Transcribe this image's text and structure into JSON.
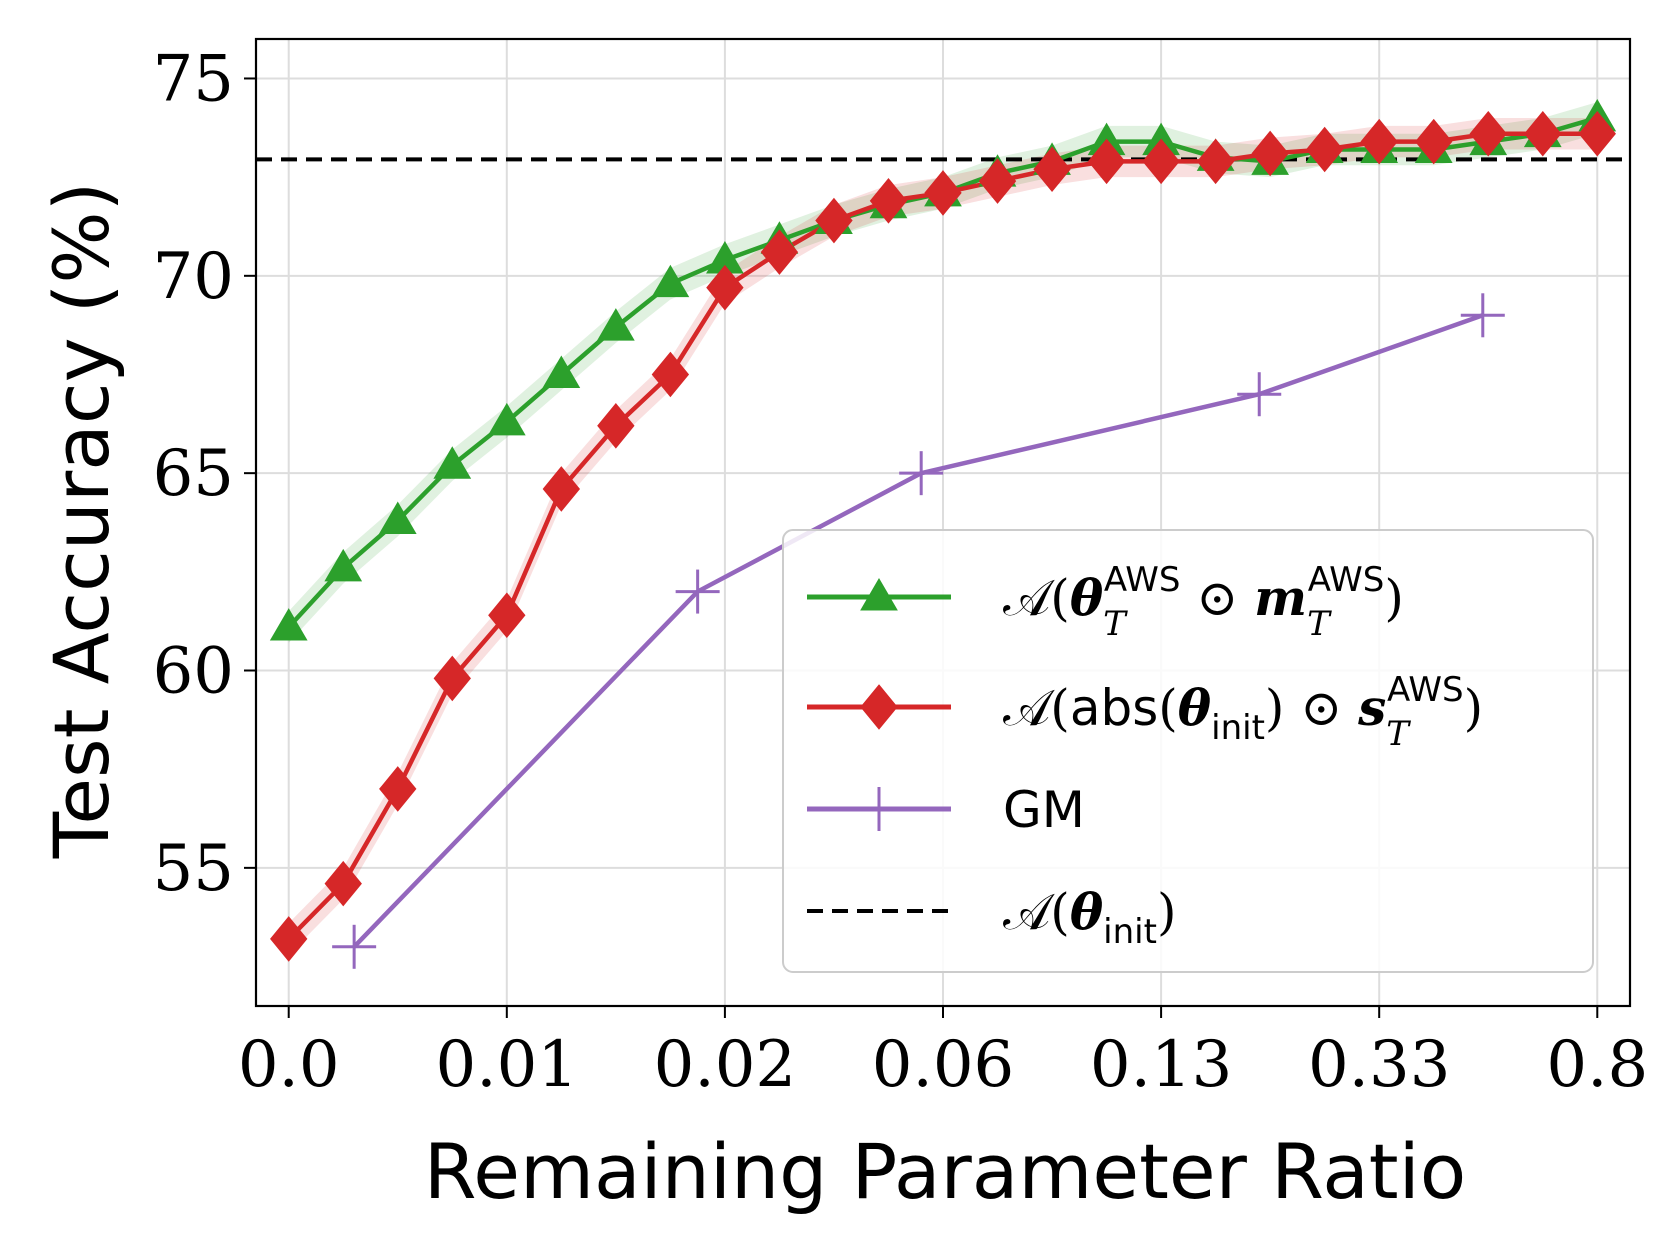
{
  "chart_data": {
    "type": "line",
    "title": "",
    "xlabel": "Remaining Parameter Ratio",
    "ylabel": "Test Accuracy (%)",
    "x_tick_labels": [
      "0.0",
      "0.01",
      "0.02",
      "0.06",
      "0.13",
      "0.33",
      "0.8"
    ],
    "y_ticks": [
      55,
      60,
      65,
      70,
      75
    ],
    "ylim": [
      51.5,
      76
    ],
    "x_index_range": [
      -0.3,
      12.3
    ],
    "grid": true,
    "legend_position": "lower-right",
    "series": [
      {
        "name": "A(θ_T^AWS ⊙ m_T^AWS)",
        "legend": {
          "prefix": "𝒜(",
          "sym1": "θ",
          "sub1": "T",
          "sup1": "AWS",
          "op": " ⊙ ",
          "sym2": "m",
          "sub2": "T",
          "sup2": "AWS",
          "suffix": ")"
        },
        "color": "#2ca02c",
        "marker": "triangle",
        "x": [
          0,
          0.5,
          1,
          1.5,
          2,
          2.5,
          3,
          3.5,
          4,
          4.5,
          5,
          5.5,
          6,
          6.5,
          7,
          7.5,
          8,
          8.5,
          9,
          9.5,
          10,
          10.5,
          11,
          11.5,
          12
        ],
        "values": [
          61.1,
          62.6,
          63.8,
          65.2,
          66.3,
          67.5,
          68.7,
          69.8,
          70.4,
          70.9,
          71.4,
          71.8,
          72.1,
          72.6,
          72.9,
          73.4,
          73.4,
          73.0,
          72.9,
          73.2,
          73.2,
          73.2,
          73.4,
          73.6,
          74.0
        ],
        "band": 0.4
      },
      {
        "name": "A(abs(θ_init) ⊙ s_T^AWS)",
        "legend": {
          "prefix": "𝒜(",
          "func": "abs",
          "open": "(",
          "sym1": "θ",
          "sub1": "init",
          "close": ")",
          "op": " ⊙ ",
          "sym2": "s",
          "sub2": "T",
          "sup2": "AWS",
          "suffix": ")"
        },
        "color": "#d62728",
        "marker": "diamond",
        "x": [
          0,
          0.5,
          1,
          1.5,
          2,
          2.5,
          3,
          3.5,
          4,
          4.5,
          5,
          5.5,
          6,
          6.5,
          7,
          7.5,
          8,
          8.5,
          9,
          9.5,
          10,
          10.5,
          11,
          11.5,
          12
        ],
        "values": [
          53.2,
          54.6,
          57.0,
          59.8,
          61.4,
          64.6,
          66.2,
          67.5,
          69.7,
          70.6,
          71.4,
          71.9,
          72.1,
          72.4,
          72.7,
          72.9,
          72.9,
          72.9,
          73.1,
          73.2,
          73.4,
          73.4,
          73.6,
          73.6,
          73.6
        ],
        "band": 0.4
      },
      {
        "name": "GM",
        "legend": {
          "text": "GM"
        },
        "color": "#9467bd",
        "marker": "plus",
        "x": [
          0.6,
          3.75,
          5.8,
          8.9,
          10.95
        ],
        "values": [
          53.0,
          62.0,
          65.0,
          67.0,
          69.0
        ]
      },
      {
        "name": "A(θ_init)",
        "legend": {
          "prefix": "𝒜(",
          "sym1": "θ",
          "sub1": "init",
          "suffix": ")"
        },
        "color": "#000000",
        "style": "dashed",
        "constant": 72.95
      }
    ]
  }
}
